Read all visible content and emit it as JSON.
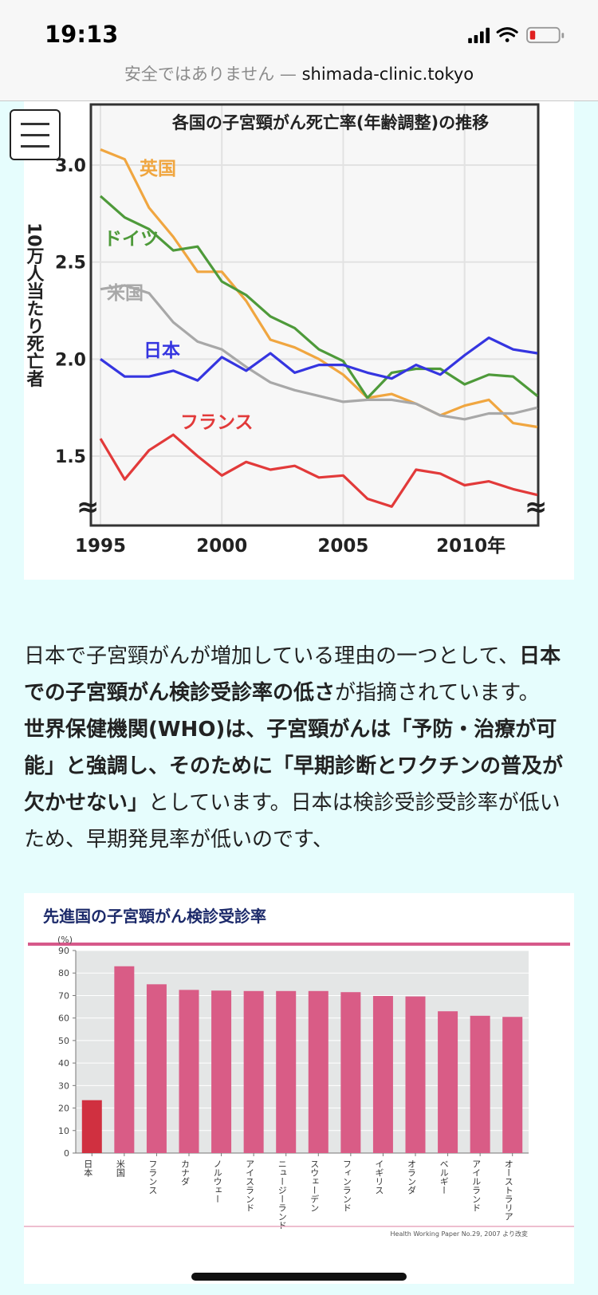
{
  "status_bar": {
    "time": "19:13"
  },
  "url_bar": {
    "warning": "安全ではありません — ",
    "domain": "shimada-clinic.tokyo"
  },
  "chart1": {
    "chart_data": {
      "type": "line",
      "title": "各国の子宮頸がん死亡率(年齢調整)の推移",
      "ylabel": "10万人当たり死亡者",
      "x_tick_labels": [
        "1995",
        "2000",
        "2005",
        "2010年"
      ],
      "y_tick_labels": [
        "3.0",
        "2.5",
        "2.0",
        "1.5"
      ],
      "y_break_symbol": "≈",
      "ylim": [
        1.1,
        3.3
      ],
      "xlim": [
        1995,
        2013
      ],
      "x": [
        1995,
        1996,
        1997,
        1998,
        1999,
        2000,
        2001,
        2002,
        2003,
        2004,
        2005,
        2006,
        2007,
        2008,
        2009,
        2010,
        2011,
        2012,
        2013
      ],
      "series": [
        {
          "name": "英国",
          "color": "#f0a640",
          "values": [
            3.08,
            3.03,
            2.78,
            2.63,
            2.45,
            2.45,
            2.3,
            2.1,
            2.06,
            2.0,
            1.92,
            1.8,
            1.82,
            1.77,
            1.71,
            1.76,
            1.79,
            1.67,
            1.65
          ]
        },
        {
          "name": "ドイツ",
          "color": "#4e9a3a",
          "values": [
            2.84,
            2.73,
            2.67,
            2.56,
            2.58,
            2.4,
            2.33,
            2.22,
            2.16,
            2.05,
            1.99,
            1.8,
            1.93,
            1.95,
            1.95,
            1.87,
            1.92,
            1.91,
            1.81
          ]
        },
        {
          "name": "米国",
          "color": "#a8a8a8",
          "values": [
            2.36,
            2.38,
            2.34,
            2.19,
            2.09,
            2.05,
            1.96,
            1.88,
            1.84,
            1.81,
            1.78,
            1.79,
            1.79,
            1.77,
            1.71,
            1.69,
            1.72,
            1.72,
            1.75
          ]
        },
        {
          "name": "日本",
          "color": "#3535e0",
          "values": [
            2.0,
            1.91,
            1.91,
            1.94,
            1.89,
            2.01,
            1.94,
            2.03,
            1.93,
            1.97,
            1.97,
            1.93,
            1.9,
            1.97,
            1.92,
            2.02,
            2.11,
            2.05,
            2.03
          ]
        },
        {
          "name": "フランス",
          "color": "#e23a3a",
          "values": [
            1.59,
            1.38,
            1.53,
            1.61,
            1.5,
            1.4,
            1.47,
            1.43,
            1.45,
            1.39,
            1.4,
            1.28,
            1.24,
            1.43,
            1.41,
            1.35,
            1.37,
            1.33,
            1.3
          ]
        }
      ]
    }
  },
  "article": {
    "p1_text": "日本で子宮頸がんが増加している理由の一つとして、",
    "p1_bold": "日本での子宮頸がん検診受診率の低さ",
    "p1_tail": "が指摘されています。",
    "p2_bold": "世界保健機関(WHO)は、子宮頸がんは「予防・治療が可能」と強調し、そのために「早期診断とワクチンの普及が欠かせない」",
    "p2_tail": "としています。日本は検診受診受診率が低いため、早期発見率が低いのです、"
  },
  "chart2": {
    "chart_data": {
      "type": "bar",
      "title": "先進国の子宮頸がん検診受診率",
      "ylabel": "(%)",
      "ylim": [
        0,
        90
      ],
      "y_ticks": [
        0,
        10,
        20,
        30,
        40,
        50,
        60,
        70,
        80,
        90
      ],
      "categories": [
        "日本",
        "米国",
        "フランス",
        "カナダ",
        "ノルウェー",
        "アイスランド",
        "ニュージーランド",
        "スウェーデン",
        "フィンランド",
        "イギリス",
        "オランダ",
        "ベルギー",
        "アイルランド",
        "オーストラリア"
      ],
      "values": [
        23.5,
        83,
        75,
        72.5,
        72.2,
        72,
        72,
        72,
        71.5,
        69.8,
        69.6,
        63,
        61,
        60.5
      ],
      "bar_colors": {
        "highlight": "#d03040",
        "normal": "#d95c86"
      },
      "source": "Health Working Paper No.29, 2007 より改変"
    }
  }
}
